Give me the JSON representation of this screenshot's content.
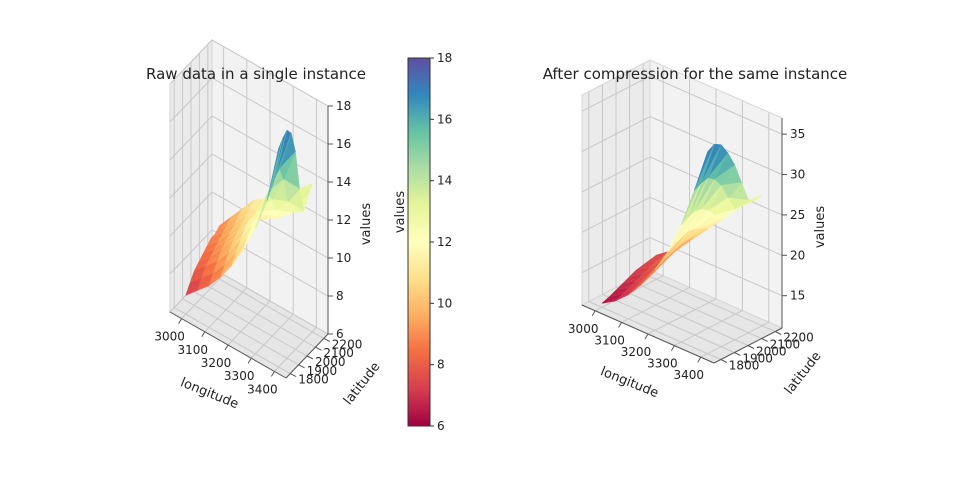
{
  "colormap": {
    "name": "Spectral",
    "min": 6,
    "max": 18,
    "stops": [
      "#9e0142",
      "#d53e4f",
      "#f46d43",
      "#fdae61",
      "#fee08b",
      "#ffffbf",
      "#e6f598",
      "#abdda4",
      "#66c2a5",
      "#3288bd",
      "#5e4fa2"
    ]
  },
  "colorbar": {
    "ticks": [
      "6",
      "8",
      "10",
      "12",
      "14",
      "16",
      "18"
    ],
    "label": "values"
  },
  "chart_data": [
    {
      "type": "surface3d",
      "title": "Raw data in a single instance",
      "xlabel": "longitude",
      "ylabel": "latitude",
      "zlabel": "values",
      "xlim": [
        2950,
        3450
      ],
      "ylim": [
        1750,
        2250
      ],
      "zlim": [
        6,
        18
      ],
      "x_ticks": [
        "3000",
        "3100",
        "3200",
        "3300",
        "3400"
      ],
      "y_ticks": [
        "1800",
        "1900",
        "2000",
        "2100",
        "2200"
      ],
      "z_ticks": [
        "6",
        "8",
        "10",
        "12",
        "14",
        "16",
        "18"
      ],
      "grid": true,
      "x": [
        3000,
        3050,
        3100,
        3150,
        3200,
        3250,
        3300,
        3350,
        3400
      ],
      "y": [
        1800,
        1850,
        1900,
        1950,
        2000,
        2050,
        2100,
        2150,
        2200
      ],
      "z": [
        [
          7.0,
          7.6,
          8.2,
          9.0,
          10.0,
          11.2,
          12.6,
          14.4,
          17.5
        ],
        [
          7.4,
          8.0,
          8.6,
          9.4,
          10.4,
          11.6,
          13.0,
          14.8,
          17.8
        ],
        [
          7.8,
          8.4,
          9.0,
          9.8,
          10.8,
          12.0,
          13.4,
          15.2,
          18.0
        ],
        [
          8.0,
          8.6,
          9.4,
          10.2,
          11.2,
          12.4,
          13.8,
          15.4,
          17.6
        ],
        [
          8.2,
          8.8,
          9.6,
          10.4,
          11.4,
          12.2,
          13.2,
          14.6,
          16.4
        ],
        [
          8.4,
          9.0,
          9.8,
          10.6,
          11.2,
          11.8,
          12.4,
          13.2,
          14.2
        ],
        [
          8.6,
          9.2,
          10.0,
          10.8,
          11.0,
          11.4,
          11.8,
          12.4,
          12.8
        ],
        [
          8.6,
          9.4,
          10.2,
          11.0,
          11.2,
          11.6,
          12.0,
          12.6,
          13.4
        ],
        [
          8.8,
          9.6,
          10.4,
          11.2,
          11.6,
          12.0,
          12.6,
          13.2,
          13.8
        ]
      ]
    },
    {
      "type": "surface3d",
      "title": "After compression for the same instance",
      "xlabel": "longitude",
      "ylabel": "latitude",
      "zlabel": "values",
      "xlim": [
        2950,
        3450
      ],
      "ylim": [
        1750,
        2250
      ],
      "zlim": [
        11,
        37
      ],
      "x_ticks": [
        "3000",
        "3100",
        "3200",
        "3300",
        "3400"
      ],
      "y_ticks": [
        "1800",
        "1900",
        "2000",
        "2100",
        "2200"
      ],
      "z_ticks": [
        "15",
        "20",
        "25",
        "30",
        "35"
      ],
      "grid": true,
      "x": [
        3000,
        3050,
        3100,
        3150,
        3200,
        3250,
        3300,
        3350,
        3400
      ],
      "y": [
        1800,
        1850,
        1900,
        1950,
        2000,
        2050,
        2100,
        2150,
        2200
      ],
      "z": [
        [
          11.5,
          12.5,
          14.0,
          16.0,
          18.5,
          21.5,
          25.5,
          30.5,
          36.0
        ],
        [
          11.8,
          12.8,
          14.4,
          16.4,
          19.0,
          22.0,
          26.0,
          31.0,
          36.5
        ],
        [
          12.2,
          13.2,
          14.8,
          16.8,
          19.4,
          22.4,
          26.4,
          31.2,
          36.0
        ],
        [
          12.6,
          13.6,
          15.2,
          17.2,
          19.8,
          22.8,
          26.2,
          30.6,
          34.5
        ],
        [
          13.0,
          14.0,
          15.6,
          17.6,
          20.0,
          22.6,
          25.6,
          29.4,
          32.6
        ],
        [
          13.4,
          14.4,
          16.0,
          18.0,
          20.2,
          22.2,
          24.6,
          27.4,
          30.0
        ],
        [
          13.6,
          14.8,
          16.4,
          18.2,
          20.0,
          21.8,
          23.6,
          25.6,
          27.4
        ],
        [
          13.8,
          15.0,
          16.6,
          18.4,
          20.2,
          22.0,
          23.8,
          25.6,
          27.0
        ],
        [
          14.0,
          15.2,
          16.8,
          18.6,
          20.4,
          22.2,
          24.0,
          25.8,
          27.2
        ]
      ]
    }
  ]
}
